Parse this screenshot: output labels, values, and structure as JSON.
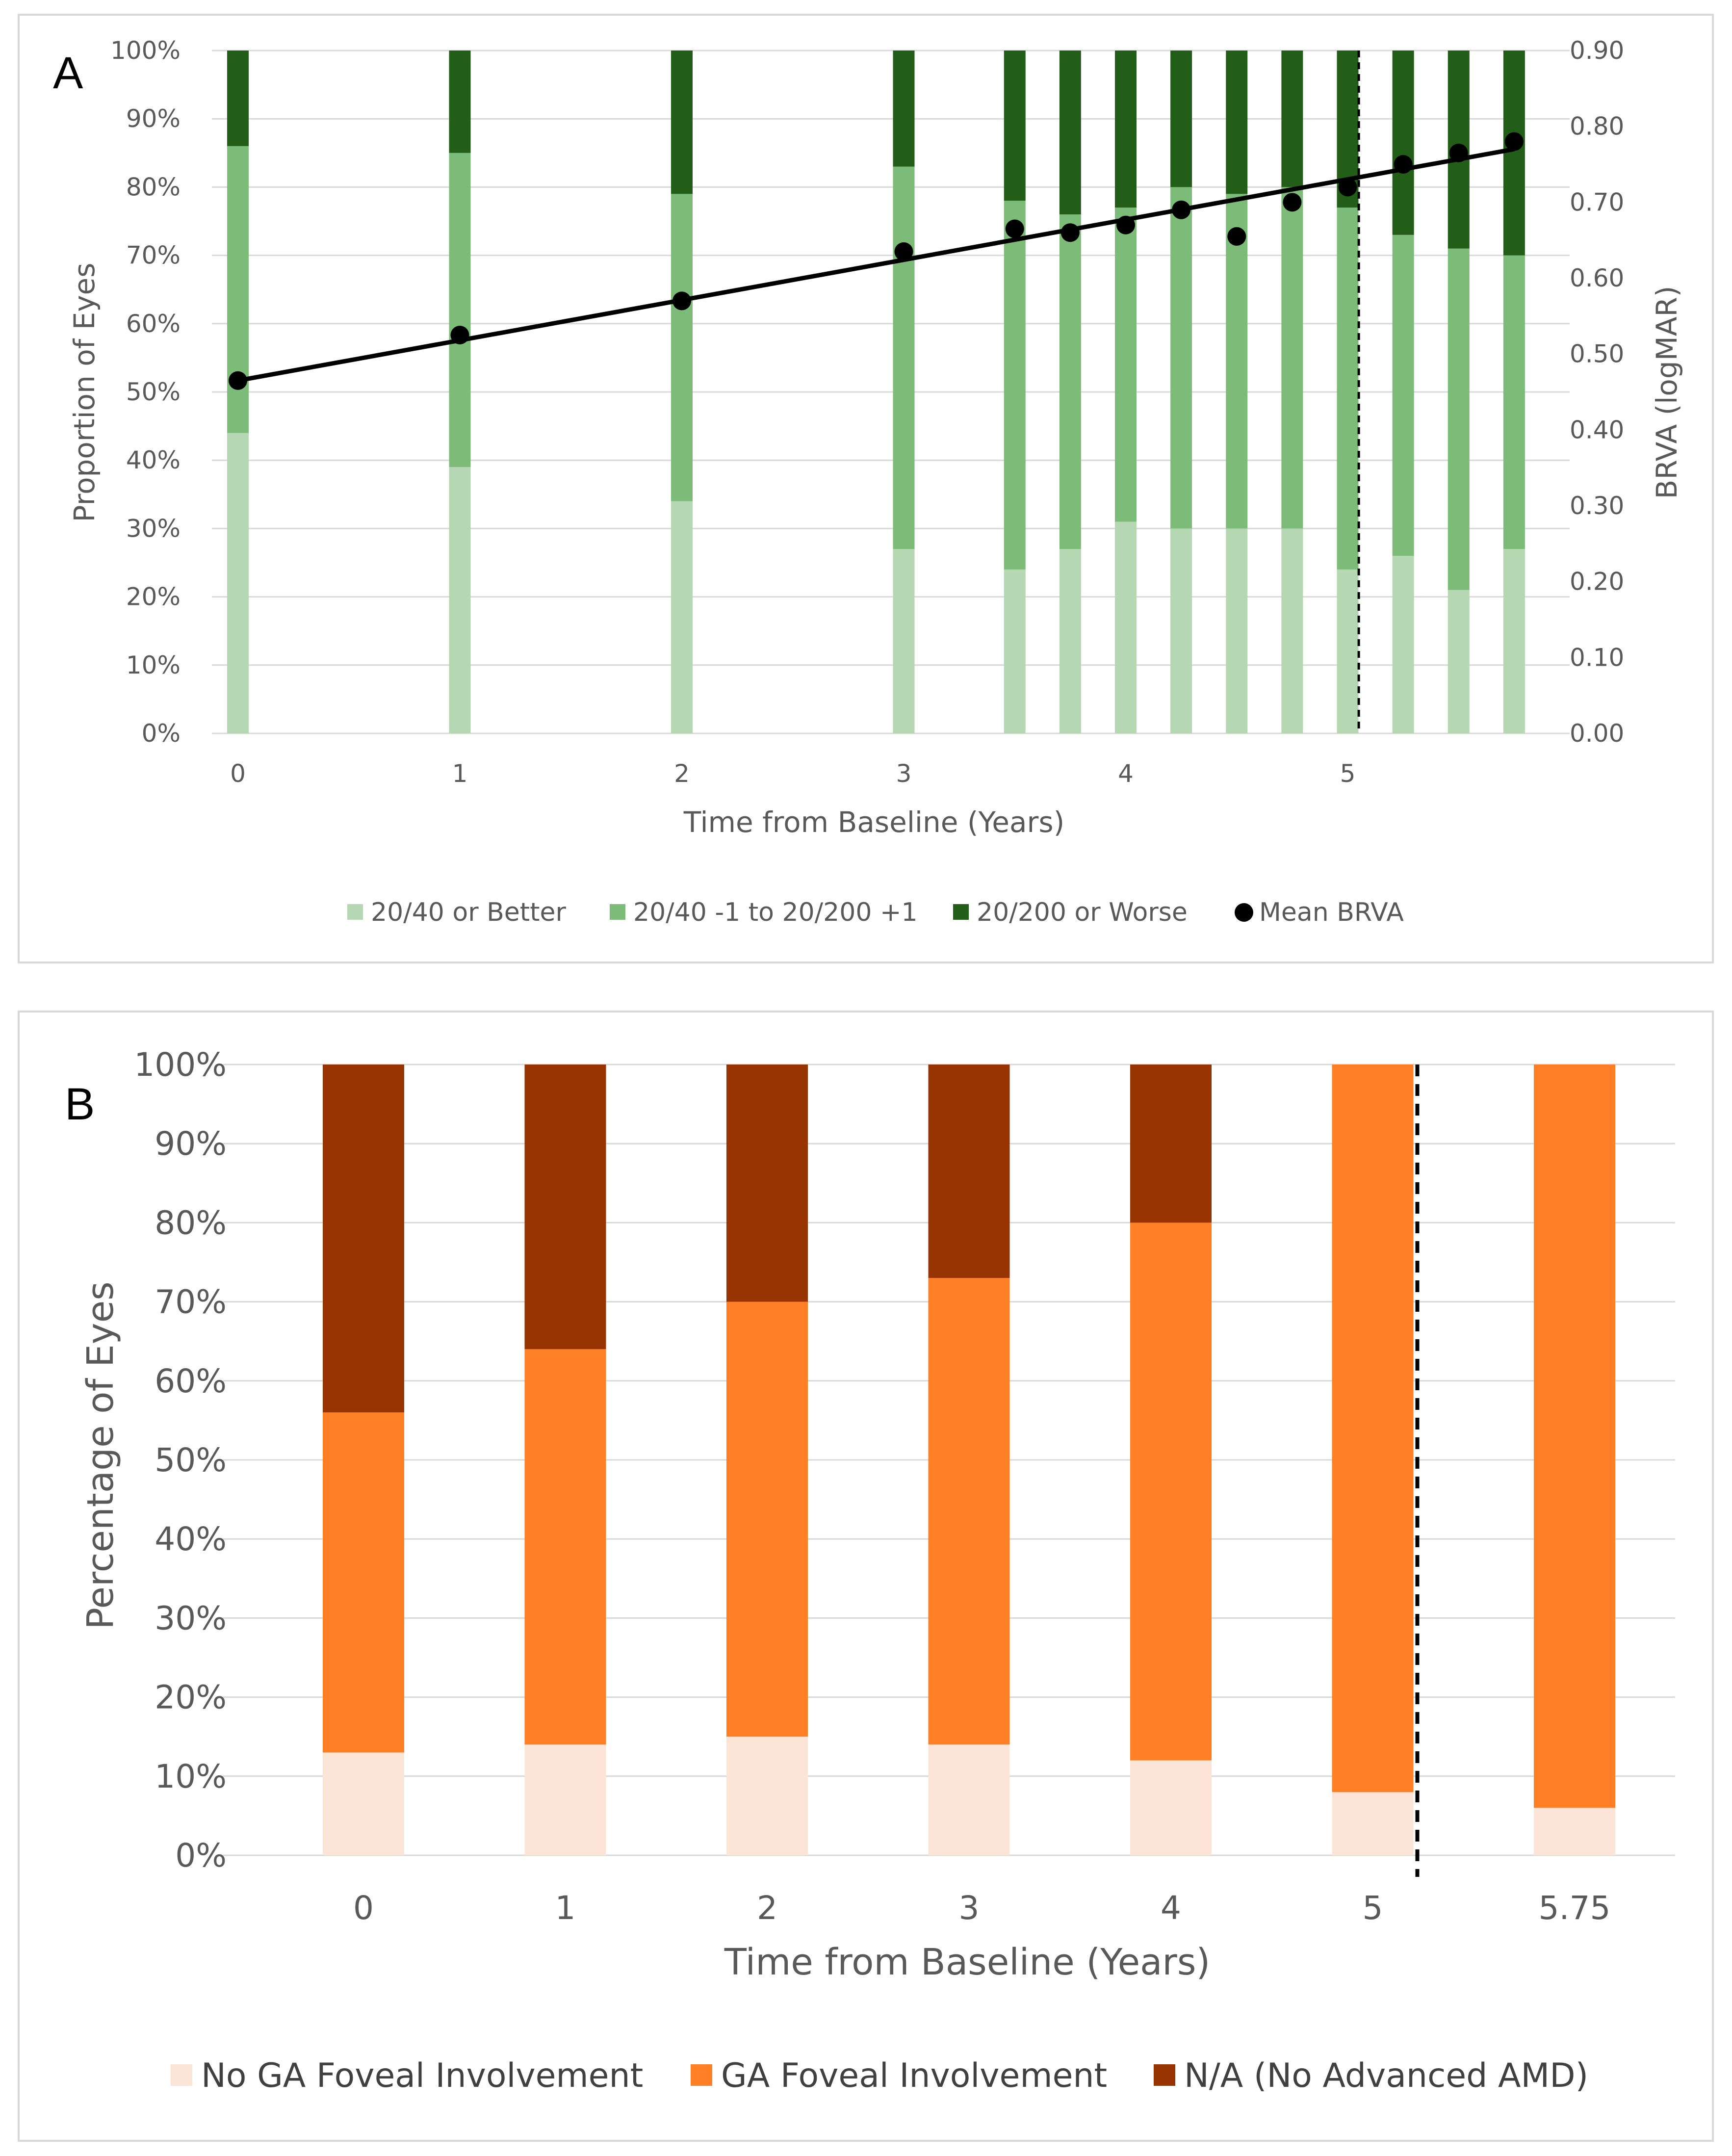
{
  "chart_data": [
    {
      "type": "bar",
      "stacked": true,
      "panel_label": "A",
      "xlabel": "Time from Baseline (Years)",
      "ylabel": "Proportion of Eyes",
      "y2label": "BRVA (logMAR)",
      "ylim": [
        0,
        100
      ],
      "y2lim": [
        0,
        0.9
      ],
      "y_ticks": [
        "0%",
        "10%",
        "20%",
        "30%",
        "40%",
        "50%",
        "60%",
        "70%",
        "80%",
        "90%",
        "100%"
      ],
      "y2_ticks": [
        "0.00",
        "0.10",
        "0.20",
        "0.30",
        "0.40",
        "0.50",
        "0.60",
        "0.70",
        "0.80",
        "0.90"
      ],
      "x_tick_labels": [
        "0",
        "1",
        "2",
        "3",
        "4",
        "5"
      ],
      "x_tick_values": [
        0,
        1,
        2,
        3,
        4,
        5
      ],
      "x": [
        0,
        1,
        2,
        3,
        3.5,
        3.75,
        4,
        4.25,
        4.5,
        4.75,
        5,
        5.25,
        5.5,
        5.75
      ],
      "xlim": [
        0,
        5.75
      ],
      "reference_line_x": 5.05,
      "colors": {
        "better": "#b5d7b1",
        "mid": "#7dbb79",
        "worse": "#235e19",
        "mean": "#000000",
        "trend": "#000000"
      },
      "series": [
        {
          "name": "20/40 or Better",
          "values": [
            44,
            39,
            34,
            27,
            24,
            27,
            31,
            30,
            30,
            30,
            24,
            26,
            21,
            27
          ]
        },
        {
          "name": "20/40 -1 to 20/200 +1",
          "values": [
            42,
            46,
            45,
            56,
            54,
            49,
            46,
            50,
            49,
            50,
            53,
            47,
            50,
            43
          ]
        },
        {
          "name": "20/200 or Worse",
          "values": [
            14,
            15,
            21,
            17,
            22,
            24,
            23,
            20,
            21,
            20,
            23,
            27,
            29,
            30
          ]
        }
      ],
      "line_series": {
        "name": "Mean BRVA",
        "values": [
          0.465,
          0.525,
          0.57,
          0.635,
          0.665,
          0.66,
          0.67,
          0.69,
          0.655,
          0.7,
          0.72,
          0.75,
          0.765,
          0.78
        ]
      },
      "trendline": {
        "start": [
          0,
          0.465
        ],
        "end": [
          5.75,
          0.77
        ]
      },
      "legend": [
        "20/40 or Better",
        "20/40 -1 to 20/200 +1",
        "20/200 or Worse",
        "Mean BRVA"
      ],
      "legend_position": "bottom"
    },
    {
      "type": "bar",
      "stacked": true,
      "panel_label": "B",
      "xlabel": "Time from Baseline (Years)",
      "ylabel": "Percentage of Eyes",
      "ylim": [
        0,
        100
      ],
      "y_ticks": [
        "0%",
        "10%",
        "20%",
        "30%",
        "40%",
        "50%",
        "60%",
        "70%",
        "80%",
        "90%",
        "100%"
      ],
      "categories": [
        "0",
        "1",
        "2",
        "3",
        "4",
        "5",
        "5.75"
      ],
      "reference_line_after_index": 5,
      "colors": {
        "no_ga": "#fce4d6",
        "ga": "#ff7f27",
        "na": "#983402"
      },
      "series": [
        {
          "name": "No GA Foveal Involvement",
          "values": [
            13,
            14,
            15,
            14,
            12,
            8,
            6
          ]
        },
        {
          "name": "GA Foveal Involvement",
          "values": [
            43,
            50,
            55,
            59,
            68,
            92,
            94
          ]
        },
        {
          "name": "N/A (No Advanced AMD)",
          "values": [
            44,
            36,
            30,
            27,
            20,
            0,
            0
          ]
        }
      ],
      "legend": [
        "No GA Foveal Involvement",
        "GA Foveal Involvement",
        "N/A (No Advanced AMD)"
      ],
      "legend_position": "bottom"
    }
  ]
}
